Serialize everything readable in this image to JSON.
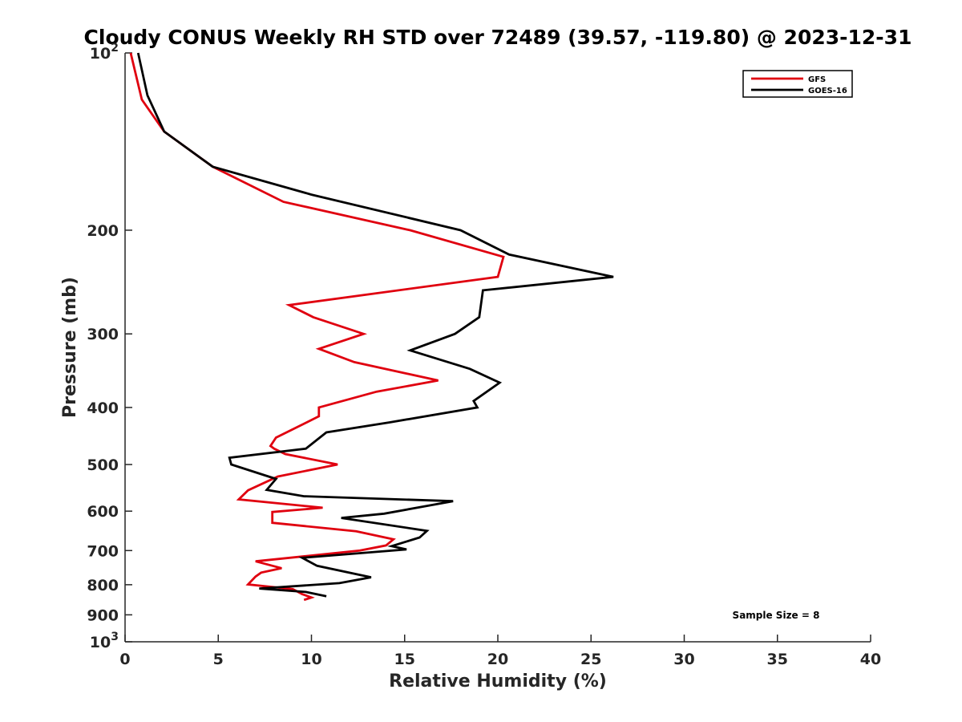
{
  "chart_data": {
    "type": "line",
    "title": "Cloudy CONUS Weekly RH STD over 72489 (39.57, -119.80) @ 2023-12-31",
    "xlabel": "Relative Humidity (%)",
    "ylabel": "Pressure (mb)",
    "xlim": [
      0,
      40
    ],
    "ylim": [
      100,
      1000
    ],
    "y_scale": "log",
    "y_reversed": true,
    "x_ticks": [
      "0",
      "5",
      "10",
      "15",
      "20",
      "25",
      "30",
      "35",
      "40"
    ],
    "y_ticks": [
      {
        "value": 100,
        "base": "10",
        "exp": "2"
      },
      {
        "value": 200,
        "label": "200"
      },
      {
        "value": 300,
        "label": "300"
      },
      {
        "value": 400,
        "label": "400"
      },
      {
        "value": 500,
        "label": "500"
      },
      {
        "value": 600,
        "label": "600"
      },
      {
        "value": 700,
        "label": "700"
      },
      {
        "value": 800,
        "label": "800"
      },
      {
        "value": 900,
        "label": "900"
      },
      {
        "value": 1000,
        "base": "10",
        "exp": "3"
      }
    ],
    "grid": false,
    "legend": {
      "placement": "top-right"
    },
    "annotation": "Sample Size = 8",
    "series": [
      {
        "name": "GFS",
        "color": "#e0000f",
        "points": [
          [
            0.3,
            100
          ],
          [
            0.9,
            120
          ],
          [
            2.1,
            136
          ],
          [
            4.7,
            156
          ],
          [
            8.5,
            179
          ],
          [
            15.3,
            200
          ],
          [
            20.3,
            222
          ],
          [
            20.0,
            240
          ],
          [
            8.8,
            268
          ],
          [
            10.1,
            281
          ],
          [
            12.8,
            300
          ],
          [
            10.4,
            318
          ],
          [
            12.3,
            335
          ],
          [
            16.8,
            360
          ],
          [
            13.5,
            376
          ],
          [
            10.4,
            400
          ],
          [
            10.4,
            414
          ],
          [
            8.1,
            450
          ],
          [
            7.8,
            465
          ],
          [
            8.0,
            470
          ],
          [
            8.6,
            480
          ],
          [
            11.4,
            500
          ],
          [
            8.2,
            524
          ],
          [
            6.6,
            553
          ],
          [
            6.1,
            573
          ],
          [
            10.6,
            592
          ],
          [
            7.9,
            602
          ],
          [
            7.9,
            628
          ],
          [
            12.4,
            649
          ],
          [
            14.4,
            670
          ],
          [
            14.0,
            686
          ],
          [
            12.6,
            700
          ],
          [
            7.0,
            730
          ],
          [
            8.4,
            750
          ],
          [
            7.3,
            763
          ],
          [
            7.0,
            775
          ],
          [
            6.6,
            799
          ],
          [
            9.0,
            814
          ],
          [
            9.5,
            830
          ],
          [
            10.0,
            841
          ],
          [
            9.6,
            849
          ]
        ]
      },
      {
        "name": "GOES-16",
        "color": "#000000",
        "points": [
          [
            0.7,
            100
          ],
          [
            1.2,
            118
          ],
          [
            2.1,
            136
          ],
          [
            4.7,
            156
          ],
          [
            10.0,
            174
          ],
          [
            18.0,
            200
          ],
          [
            20.6,
            220
          ],
          [
            26.2,
            240
          ],
          [
            19.2,
            253
          ],
          [
            19.0,
            281
          ],
          [
            17.7,
            300
          ],
          [
            15.3,
            320
          ],
          [
            18.5,
            344
          ],
          [
            20.1,
            363
          ],
          [
            18.7,
            390
          ],
          [
            18.9,
            400
          ],
          [
            14.2,
            424
          ],
          [
            10.8,
            441
          ],
          [
            9.7,
            470
          ],
          [
            5.6,
            487
          ],
          [
            5.7,
            500
          ],
          [
            8.1,
            529
          ],
          [
            7.6,
            552
          ],
          [
            9.6,
            566
          ],
          [
            17.6,
            577
          ],
          [
            13.9,
            606
          ],
          [
            11.6,
            616
          ],
          [
            16.2,
            648
          ],
          [
            15.8,
            665
          ],
          [
            14.3,
            688
          ],
          [
            15.1,
            697
          ],
          [
            9.5,
            720
          ],
          [
            10.3,
            743
          ],
          [
            13.2,
            777
          ],
          [
            11.5,
            795
          ],
          [
            7.2,
            812
          ],
          [
            9.7,
            823
          ],
          [
            10.8,
            837
          ]
        ]
      }
    ]
  }
}
